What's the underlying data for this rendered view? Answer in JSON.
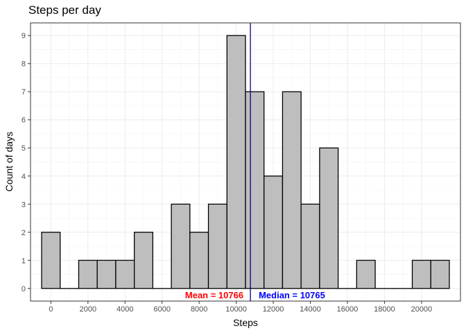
{
  "chart_data": {
    "type": "bar",
    "title": "Steps per day",
    "xlabel": "Steps",
    "ylabel": "Count of days",
    "bin_width": 1000,
    "bins": [
      {
        "x": 0,
        "count": 2
      },
      {
        "x": 1000,
        "count": 0
      },
      {
        "x": 2000,
        "count": 1
      },
      {
        "x": 3000,
        "count": 1
      },
      {
        "x": 4000,
        "count": 1
      },
      {
        "x": 5000,
        "count": 2
      },
      {
        "x": 6000,
        "count": 0
      },
      {
        "x": 7000,
        "count": 3
      },
      {
        "x": 8000,
        "count": 2
      },
      {
        "x": 9000,
        "count": 3
      },
      {
        "x": 10000,
        "count": 9
      },
      {
        "x": 11000,
        "count": 7
      },
      {
        "x": 12000,
        "count": 4
      },
      {
        "x": 13000,
        "count": 7
      },
      {
        "x": 14000,
        "count": 3
      },
      {
        "x": 15000,
        "count": 5
      },
      {
        "x": 16000,
        "count": 0
      },
      {
        "x": 17000,
        "count": 1
      },
      {
        "x": 18000,
        "count": 0
      },
      {
        "x": 19000,
        "count": 0
      },
      {
        "x": 20000,
        "count": 1
      },
      {
        "x": 21000,
        "count": 1
      }
    ],
    "x_ticks": [
      "0",
      "2000",
      "4000",
      "6000",
      "8000",
      "10000",
      "12000",
      "14000",
      "16000",
      "18000",
      "20000"
    ],
    "y_ticks": [
      "0",
      "1",
      "2",
      "3",
      "4",
      "5",
      "6",
      "7",
      "8",
      "9"
    ],
    "xlim": [
      -1100,
      22100
    ],
    "ylim": [
      -0.45,
      9.45
    ],
    "grid": true,
    "bar_fill": "#bebebe",
    "bar_stroke": "#000000",
    "vline": {
      "x": 10766,
      "color": "#00008b"
    },
    "annotations": {
      "mean": {
        "text": "Mean =  10766",
        "color": "#ff0000"
      },
      "median": {
        "text": "Median =  10765",
        "color": "#0000ff"
      }
    }
  }
}
